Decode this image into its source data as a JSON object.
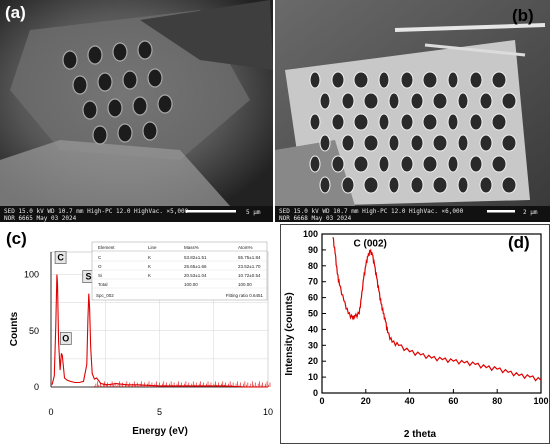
{
  "panels": {
    "a": {
      "label": "(a)",
      "info_line1": "SED    15.0 kV   WD 10.7 mm   High-PC 12.0   HighVac.   ×5,000",
      "info_line2": "NOR    6665    May 03 2024",
      "scale_bar_label": "5 μm"
    },
    "b": {
      "label": "(b)",
      "info_line1": "SED    15.0 kV   WD 10.7 mm   High-PC 12.0   HighVac.   ×6,000",
      "info_line2": "NOR    6668    May 03 2024",
      "scale_bar_label": "2 μm"
    },
    "c": {
      "label": "(c)"
    },
    "d": {
      "label": "(d)"
    }
  },
  "eds_table": {
    "headers": [
      "Element",
      "Line",
      "Mass%",
      "Atom%"
    ],
    "rows": [
      [
        "C",
        "K",
        "53.82±1.51",
        "65.75±1.84"
      ],
      [
        "O",
        "K",
        "25.65±1.66",
        "23.52±1.70"
      ],
      [
        "Si",
        "K",
        "20.53±1.04",
        "10.72±0.54"
      ],
      [
        "Total",
        "",
        "100.00",
        "100.00"
      ]
    ],
    "footer_left": "Spc_002",
    "footer_right": "Fitting ratio 0.6451"
  },
  "chart_data": [
    {
      "type": "line",
      "panel": "c",
      "xlabel": "Energy (eV)",
      "ylabel": "Counts",
      "xlim": [
        0,
        10
      ],
      "ylim": [
        0,
        120
      ],
      "xticks": [
        0,
        5,
        10
      ],
      "yticks": [
        0,
        50,
        100
      ],
      "grid": true,
      "peaks": [
        {
          "label": "C",
          "x": 0.28,
          "y": 100
        },
        {
          "label": "O",
          "x": 0.52,
          "y": 28
        },
        {
          "label": "Si",
          "x": 1.74,
          "y": 83
        }
      ],
      "series": [
        {
          "color": "#e00000",
          "x": [
            0.05,
            0.15,
            0.22,
            0.27,
            0.3,
            0.35,
            0.42,
            0.48,
            0.52,
            0.56,
            0.62,
            0.75,
            0.9,
            1.1,
            1.3,
            1.5,
            1.65,
            1.7,
            1.74,
            1.78,
            1.83,
            1.9,
            2.0,
            2.1,
            2.3,
            2.6,
            3.0,
            3.5,
            4.0,
            5.0,
            6.0,
            7.0,
            8.0,
            9.0,
            10.0
          ],
          "y": [
            2,
            10,
            55,
            100,
            92,
            40,
            15,
            30,
            28,
            20,
            8,
            6,
            5,
            4,
            4,
            5,
            20,
            60,
            83,
            70,
            35,
            12,
            7,
            8,
            3,
            2,
            3,
            2,
            2,
            1,
            1,
            1,
            1,
            0,
            0
          ]
        }
      ]
    },
    {
      "type": "line",
      "panel": "d",
      "xlabel": "2 theta",
      "ylabel": "Intensity (counts)",
      "xlim": [
        0,
        100
      ],
      "ylim": [
        0,
        100
      ],
      "xticks": [
        0,
        20,
        40,
        60,
        80,
        100
      ],
      "yticks": [
        0,
        10,
        20,
        30,
        40,
        50,
        60,
        70,
        80,
        90,
        100
      ],
      "grid": false,
      "annotations": [
        {
          "text": "C (002)",
          "x": 22,
          "y": 92
        }
      ],
      "series": [
        {
          "color": "#e00000",
          "x": [
            5,
            6,
            7,
            8,
            10,
            12,
            14,
            15,
            17,
            18,
            19,
            20,
            21,
            22,
            23,
            24,
            25,
            26,
            27,
            28,
            29,
            30,
            32,
            35,
            40,
            45,
            50,
            55,
            60,
            65,
            70,
            75,
            80,
            85,
            90,
            95,
            100
          ],
          "y": [
            98,
            88,
            75,
            68,
            58,
            50,
            47,
            48,
            50,
            60,
            72,
            80,
            86,
            89,
            87,
            80,
            72,
            64,
            56,
            50,
            45,
            38,
            32,
            30,
            26,
            24,
            22,
            21,
            20,
            19,
            18,
            16,
            15,
            13,
            11,
            10,
            8
          ]
        }
      ]
    }
  ]
}
